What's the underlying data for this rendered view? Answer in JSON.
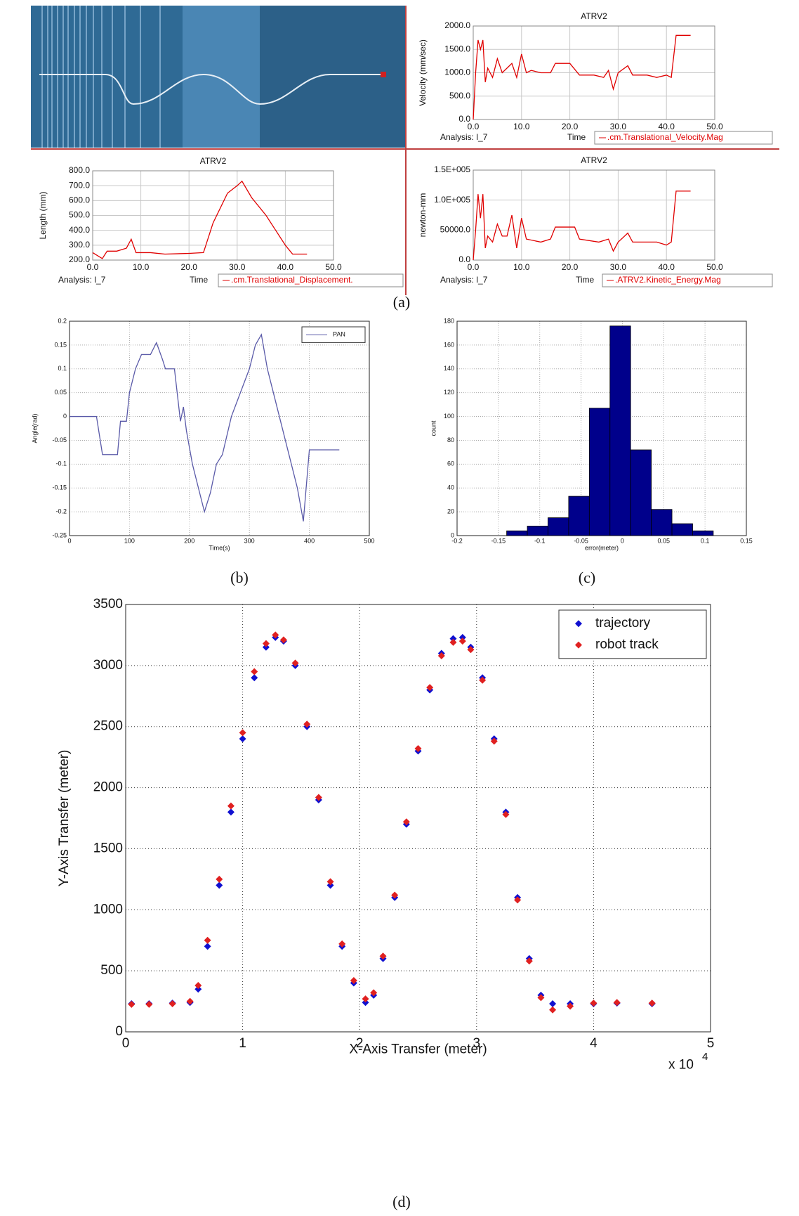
{
  "captions": [
    "(a)",
    "(b)",
    "(c)",
    "(d)"
  ],
  "chart_data": [
    {
      "type": "line",
      "title": "ATRV2",
      "ylabel": "Velocity (mm/sec)",
      "xlabel": "Time",
      "analysis_label": "Analysis:  l_7",
      "xlim": [
        0,
        50
      ],
      "xticks": [
        {
          "value": 0,
          "label": "0.0"
        },
        {
          "value": 10,
          "label": "10.0"
        },
        {
          "value": 20,
          "label": "20.0"
        },
        {
          "value": 30,
          "label": "30.0"
        },
        {
          "value": 40,
          "label": "40.0"
        },
        {
          "value": 50,
          "label": "50.0"
        }
      ],
      "ylim": [
        0,
        2000
      ],
      "yticks": [
        {
          "value": 0,
          "label": "0.0"
        },
        {
          "value": 500,
          "label": "500.0"
        },
        {
          "value": 1000,
          "label": "1000.0"
        },
        {
          "value": 1500,
          "label": "1500.0"
        },
        {
          "value": 2000,
          "label": "2000.0"
        }
      ],
      "grid": true,
      "x": [
        0,
        0.5,
        1,
        1.5,
        2,
        2.5,
        3,
        4,
        5,
        6,
        7,
        8,
        9,
        10,
        11,
        12,
        14,
        16,
        17,
        20,
        22,
        25,
        27,
        28,
        29,
        30,
        32,
        33,
        36,
        38,
        40,
        41,
        42,
        45
      ],
      "series": [
        {
          "name": ".cm.Translational_Velocity.Mag",
          "color": "#e00000",
          "values": [
            0,
            1000,
            1700,
            1500,
            1700,
            800,
            1100,
            900,
            1300,
            1000,
            1100,
            1200,
            900,
            1400,
            1000,
            1050,
            1000,
            1000,
            1200,
            1200,
            950,
            950,
            900,
            1050,
            650,
            1000,
            1150,
            950,
            950,
            900,
            950,
            900,
            1800,
            1800
          ]
        }
      ]
    },
    {
      "type": "line",
      "title": "ATRV2",
      "ylabel": "Length (mm)",
      "xlabel": "Time",
      "analysis_label": "Analysis:  l_7",
      "xlim": [
        0,
        50
      ],
      "xticks": [
        {
          "value": 0,
          "label": "0.0"
        },
        {
          "value": 10,
          "label": "10.0"
        },
        {
          "value": 20,
          "label": "20.0"
        },
        {
          "value": 30,
          "label": "30.0"
        },
        {
          "value": 40,
          "label": "40.0"
        },
        {
          "value": 50,
          "label": "50.0"
        }
      ],
      "ylim": [
        200,
        800
      ],
      "yticks": [
        {
          "value": 200,
          "label": "200.0"
        },
        {
          "value": 300,
          "label": "300.0"
        },
        {
          "value": 400,
          "label": "400.0"
        },
        {
          "value": 500,
          "label": "500.0"
        },
        {
          "value": 600,
          "label": "600.0"
        },
        {
          "value": 700,
          "label": "700.0"
        },
        {
          "value": 800,
          "label": "800.0"
        }
      ],
      "grid": true,
      "x": [
        0,
        1,
        2,
        3,
        5,
        7,
        8,
        9,
        12,
        15,
        20,
        23,
        25,
        28,
        30,
        31,
        33,
        36,
        38,
        40,
        41.5,
        44.5
      ],
      "series": [
        {
          "name": ".cm.Translational_Displacement.",
          "color": "#e00000",
          "values": [
            250,
            230,
            210,
            260,
            260,
            280,
            340,
            250,
            250,
            240,
            245,
            250,
            450,
            650,
            700,
            730,
            620,
            500,
            400,
            300,
            240,
            240
          ]
        }
      ]
    },
    {
      "type": "line",
      "title": "ATRV2",
      "ylabel": "newton-mm",
      "xlabel": "Time",
      "analysis_label": "Analysis:  l_7",
      "xlim": [
        0,
        50
      ],
      "xticks": [
        {
          "value": 0,
          "label": "0.0"
        },
        {
          "value": 10,
          "label": "10.0"
        },
        {
          "value": 20,
          "label": "20.0"
        },
        {
          "value": 30,
          "label": "30.0"
        },
        {
          "value": 40,
          "label": "40.0"
        },
        {
          "value": 50,
          "label": "50.0"
        }
      ],
      "ylim": [
        0,
        150000
      ],
      "yticks": [
        {
          "value": 0,
          "label": "0.0"
        },
        {
          "value": 50000,
          "label": "50000.0"
        },
        {
          "value": 100000,
          "label": "1.0E+005"
        },
        {
          "value": 150000,
          "label": "1.5E+005"
        }
      ],
      "grid": true,
      "x": [
        0,
        0.5,
        1,
        1.5,
        2,
        2.5,
        3,
        4,
        5,
        6,
        7,
        8,
        9,
        10,
        11,
        14,
        16,
        17,
        21,
        22,
        26,
        28,
        29,
        30,
        32,
        33,
        38,
        40,
        41,
        42,
        45
      ],
      "series": [
        {
          "name": ".ATRV2.Kinetic_Energy.Mag",
          "color": "#e00000",
          "values": [
            0,
            50000,
            110000,
            70000,
            110000,
            20000,
            40000,
            30000,
            60000,
            40000,
            40000,
            75000,
            20000,
            70000,
            35000,
            30000,
            35000,
            55000,
            55000,
            35000,
            30000,
            35000,
            15000,
            30000,
            45000,
            30000,
            30000,
            25000,
            30000,
            115000,
            115000
          ]
        }
      ]
    },
    {
      "type": "line",
      "ylabel": "Angle(rad)",
      "xlabel": "Time(s)",
      "legend": "upper right",
      "xlim": [
        0,
        500
      ],
      "xticks": [
        0,
        100,
        200,
        300,
        400,
        500
      ],
      "ylim": [
        -0.25,
        0.2
      ],
      "yticks": [
        -0.25,
        -0.2,
        -0.15,
        -0.1,
        -0.05,
        0,
        0.05,
        0.1,
        0.15,
        0.2
      ],
      "grid": true,
      "x": [
        0,
        45,
        55,
        80,
        85,
        95,
        100,
        110,
        120,
        135,
        145,
        155,
        160,
        175,
        185,
        190,
        195,
        205,
        215,
        225,
        235,
        245,
        255,
        270,
        285,
        300,
        310,
        320,
        330,
        340,
        350,
        360,
        370,
        380,
        390,
        400,
        450
      ],
      "series": [
        {
          "name": "PAN",
          "color": "#5a5aa8",
          "values": [
            0,
            0,
            -0.08,
            -0.08,
            -0.01,
            -0.01,
            0.05,
            0.1,
            0.13,
            0.13,
            0.155,
            0.12,
            0.1,
            0.1,
            -0.01,
            0.02,
            -0.03,
            -0.1,
            -0.15,
            -0.2,
            -0.16,
            -0.1,
            -0.08,
            0,
            0.05,
            0.1,
            0.15,
            0.172,
            0.1,
            0.05,
            0,
            -0.05,
            -0.1,
            -0.15,
            -0.22,
            -0.07,
            -0.07
          ]
        }
      ]
    },
    {
      "type": "histogram",
      "ylabel": "count",
      "xlabel": "error(meter)",
      "color": "#00008b",
      "xlim": [
        -0.2,
        0.15
      ],
      "xticks": [
        -0.2,
        -0.15,
        -0.1,
        -0.05,
        0,
        0.05,
        0.1,
        0.15
      ],
      "ylim": [
        0,
        180
      ],
      "yticks": [
        0,
        20,
        40,
        60,
        80,
        100,
        120,
        140,
        160,
        180
      ],
      "grid": true,
      "bins": [
        -0.14,
        -0.115,
        -0.09,
        -0.065,
        -0.04,
        -0.015,
        0.01,
        0.035,
        0.06,
        0.085,
        0.11
      ],
      "values": [
        4,
        8,
        15,
        33,
        107,
        176,
        72,
        22,
        10,
        4
      ]
    },
    {
      "type": "scatter",
      "ylabel": "Y-Axis Transfer (meter)",
      "xlabel": "X-Axis Transfer (meter)",
      "x_multiplier": "x 10",
      "x_exponent": "4",
      "legend": "upper right",
      "xlim": [
        0,
        5
      ],
      "xticks": [
        0,
        1,
        2,
        3,
        4,
        5
      ],
      "ylim": [
        0,
        3500
      ],
      "yticks": [
        0,
        500,
        1000,
        1500,
        2000,
        2500,
        3000,
        3500
      ],
      "grid": true,
      "series": [
        {
          "name": "trajectory",
          "color": "#1010d0",
          "x": [
            0.05,
            0.2,
            0.4,
            0.55,
            0.62,
            0.7,
            0.8,
            0.9,
            1.0,
            1.1,
            1.2,
            1.28,
            1.35,
            1.45,
            1.55,
            1.65,
            1.75,
            1.85,
            1.95,
            2.05,
            2.12,
            2.2,
            2.3,
            2.4,
            2.5,
            2.6,
            2.7,
            2.8,
            2.88,
            2.95,
            3.05,
            3.15,
            3.25,
            3.35,
            3.45,
            3.55,
            3.65,
            3.8,
            4.0,
            4.2,
            4.5
          ],
          "values": [
            230,
            230,
            235,
            240,
            350,
            700,
            1200,
            1800,
            2400,
            2900,
            3150,
            3230,
            3200,
            3000,
            2500,
            1900,
            1200,
            700,
            400,
            240,
            300,
            600,
            1100,
            1700,
            2300,
            2800,
            3100,
            3220,
            3230,
            3150,
            2900,
            2400,
            1800,
            1100,
            600,
            300,
            230,
            230,
            230,
            235,
            230
          ]
        },
        {
          "name": "robot track",
          "color": "#e02020",
          "x": [
            0.05,
            0.2,
            0.4,
            0.55,
            0.62,
            0.7,
            0.8,
            0.9,
            1.0,
            1.1,
            1.2,
            1.28,
            1.35,
            1.45,
            1.55,
            1.65,
            1.75,
            1.85,
            1.95,
            2.05,
            2.12,
            2.2,
            2.3,
            2.4,
            2.5,
            2.6,
            2.7,
            2.8,
            2.88,
            2.95,
            3.05,
            3.15,
            3.25,
            3.35,
            3.45,
            3.55,
            3.65,
            3.8,
            4.0,
            4.2,
            4.5
          ],
          "values": [
            225,
            225,
            230,
            250,
            380,
            750,
            1250,
            1850,
            2450,
            2950,
            3180,
            3250,
            3210,
            3020,
            2520,
            1920,
            1230,
            720,
            420,
            270,
            320,
            620,
            1120,
            1720,
            2320,
            2820,
            3080,
            3190,
            3200,
            3130,
            2880,
            2380,
            1780,
            1080,
            580,
            280,
            180,
            210,
            235,
            240,
            235
          ]
        }
      ]
    }
  ]
}
